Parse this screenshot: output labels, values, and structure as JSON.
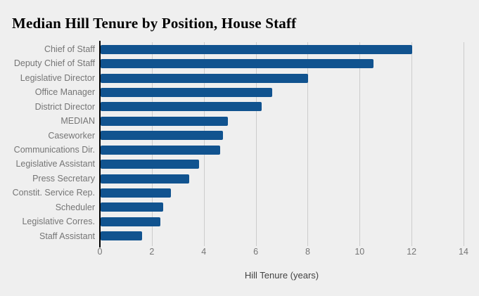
{
  "page": {
    "background_color": "#efefef"
  },
  "chart_data": {
    "type": "bar",
    "orientation": "horizontal",
    "title": "Median Hill Tenure by Position, House Staff",
    "xlabel": "Hill Tenure (years)",
    "ylabel": "",
    "categories": [
      "Chief of Staff",
      "Deputy Chief of Staff",
      "Legislative Director",
      "Office Manager",
      "District Director",
      "MEDIAN",
      "Caseworker",
      "Communications Dir.",
      "Legislative Assistant",
      "Press Secretary",
      "Constit. Service Rep.",
      "Scheduler",
      "Legislative Corres.",
      "Staff Assistant"
    ],
    "values": [
      12.0,
      10.5,
      8.0,
      6.6,
      6.2,
      4.9,
      4.7,
      4.6,
      3.8,
      3.4,
      2.7,
      2.4,
      2.3,
      1.6
    ],
    "xlim": [
      0,
      14
    ],
    "xticks": [
      0,
      2,
      4,
      6,
      8,
      10,
      12,
      14
    ],
    "grid": true,
    "legend": false,
    "bar_color": "#11538f",
    "gridline_color": "#cccccc",
    "axis_line_color": "#000000",
    "tick_label_color": "#757575",
    "category_label_color": "#757575",
    "axis_title_color": "#424242",
    "background_color": "#efefef"
  }
}
